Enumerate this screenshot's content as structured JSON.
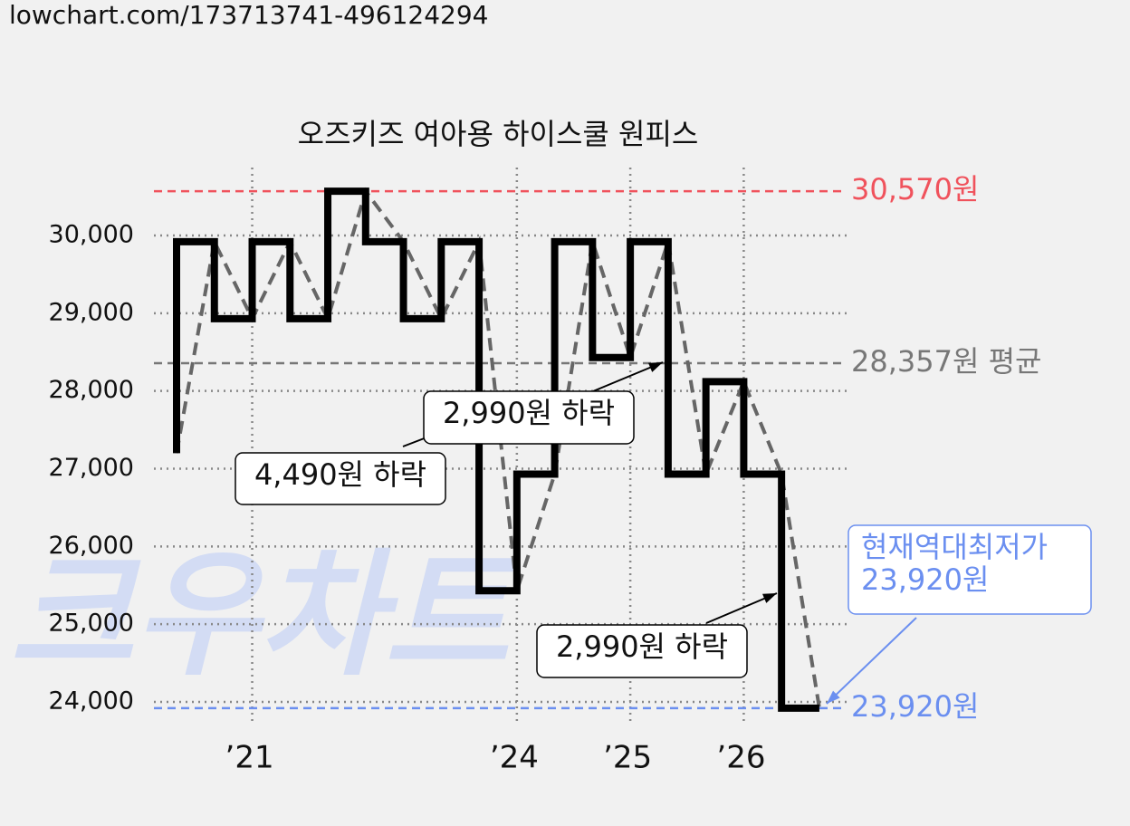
{
  "header": "lowchart.com/173713741-496124294",
  "chart_data": {
    "type": "step-line",
    "title": "오즈키즈 여아용 하이스쿨 원피스",
    "watermark": "크우차트",
    "categories": [
      null,
      null,
      "’21",
      null,
      null,
      null,
      null,
      null,
      null,
      "’24",
      null,
      null,
      "’25",
      null,
      null,
      "’26",
      null,
      null
    ],
    "series": [
      {
        "color": "#000000",
        "values": [
          27200,
          29920,
          28930,
          29920,
          28930,
          30570,
          29920,
          28930,
          29920,
          25430,
          26930,
          29920,
          28430,
          29920,
          26930,
          28120,
          26930,
          23920
        ]
      }
    ],
    "ylim": [
      23700,
      30900
    ],
    "yticks": [
      {
        "value": 24000,
        "label": "24,000"
      },
      {
        "value": 25000,
        "label": "25,000"
      },
      {
        "value": 26000,
        "label": "26,000"
      },
      {
        "value": 27000,
        "label": "27,000"
      },
      {
        "value": 28000,
        "label": "28,000"
      },
      {
        "value": 29000,
        "label": "29,000"
      },
      {
        "value": 30000,
        "label": "30,000"
      }
    ],
    "grid": true,
    "max": {
      "value": 30570,
      "label": "30,570원",
      "color": "#f0525c"
    },
    "average": {
      "value": 28357,
      "label": "28,357원 평균",
      "color": "#777777"
    },
    "min": {
      "value": 23920,
      "label": "23,920원",
      "color": "#6b8ff0"
    },
    "min_note": [
      "현재역대최저가",
      "23,920원"
    ],
    "annotations": [
      "4,490원 하락",
      "2,990원 하락",
      "2,990원 하락"
    ]
  }
}
